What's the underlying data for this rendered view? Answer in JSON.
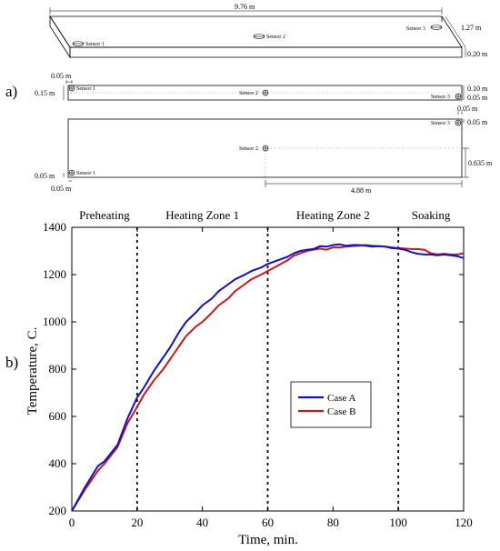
{
  "schematic": {
    "panel_label": "a)",
    "iso": {
      "length": "9.76 m",
      "width": "1.27 m",
      "thickness": "0.20 m",
      "sensors": [
        "Sensor 1",
        "Sensor 2",
        "Sensor 3"
      ]
    },
    "side": {
      "dim_top_left": "0.05 m",
      "dim_left": "0.15 m",
      "dim_right_top": "0.10 m",
      "dim_right_bottom": "0.05 m",
      "dim_below_right": "0.05 m",
      "sensors": [
        "Sensor 1",
        "Sensor 2",
        "Sensor 3"
      ]
    },
    "top": {
      "dim_right_top": "0.05 m",
      "dim_right_mid": "0.635 m",
      "dim_left_bottom": "0.05 m",
      "dim_bottom_left": "0.05 m",
      "dim_bottom_mid": "4.88 m",
      "sensors": [
        "Sensor 1",
        "Sensor 2",
        "Sensor 3"
      ]
    }
  },
  "chart_panel_label": "b)",
  "colors": {
    "case_a": "#1010c8",
    "case_b": "#c81818",
    "case_b_light": "#7a4a10"
  },
  "chart_data": {
    "type": "line",
    "xlabel": "Time, min.",
    "ylabel": "Temperature, C.",
    "xlim": [
      0,
      120
    ],
    "ylim": [
      200,
      1400
    ],
    "xticks": [
      0,
      20,
      40,
      60,
      80,
      100,
      120
    ],
    "yticks": [
      200,
      400,
      600,
      800,
      1000,
      1200,
      1400
    ],
    "grid": false,
    "legend": "center-right",
    "zones": [
      {
        "label": "Preheating",
        "start": 0,
        "end": 20
      },
      {
        "label": "Heating Zone 1",
        "start": 20,
        "end": 60
      },
      {
        "label": "Heating Zone 2",
        "start": 60,
        "end": 100
      },
      {
        "label": "Soaking",
        "start": 100,
        "end": 120
      }
    ],
    "boundaries": [
      20,
      60,
      100
    ],
    "series": [
      {
        "name": "Case A",
        "x": [
          0,
          4,
          8,
          10,
          14,
          17,
          20,
          22,
          25,
          28,
          30,
          33,
          35,
          38,
          40,
          43,
          45,
          48,
          50,
          53,
          55,
          58,
          60,
          62,
          64,
          66,
          68,
          70,
          72,
          74,
          76,
          78,
          80,
          82,
          84,
          86,
          88,
          90,
          92,
          94,
          96,
          98,
          100,
          102,
          104,
          106,
          108,
          110,
          112,
          114,
          116,
          118,
          120
        ],
        "y": [
          200,
          300,
          390,
          410,
          480,
          590,
          680,
          720,
          790,
          850,
          890,
          960,
          1000,
          1040,
          1070,
          1100,
          1130,
          1160,
          1180,
          1200,
          1215,
          1230,
          1245,
          1255,
          1265,
          1275,
          1290,
          1300,
          1305,
          1308,
          1320,
          1318,
          1325,
          1328,
          1322,
          1325,
          1325,
          1322,
          1318,
          1320,
          1318,
          1312,
          1310,
          1305,
          1295,
          1288,
          1285,
          1285,
          1282,
          1285,
          1282,
          1278,
          1270
        ]
      },
      {
        "name": "Case B",
        "x": [
          0,
          4,
          8,
          10,
          14,
          17,
          20,
          22,
          25,
          28,
          30,
          33,
          35,
          38,
          40,
          43,
          45,
          48,
          50,
          53,
          55,
          58,
          60,
          62,
          64,
          66,
          68,
          70,
          72,
          74,
          76,
          78,
          80,
          82,
          84,
          86,
          88,
          90,
          92,
          94,
          96,
          98,
          100,
          102,
          104,
          106,
          108,
          110,
          112,
          114,
          116,
          118,
          120
        ],
        "y": [
          200,
          290,
          370,
          400,
          470,
          570,
          640,
          690,
          750,
          800,
          840,
          900,
          940,
          980,
          1000,
          1040,
          1070,
          1100,
          1130,
          1160,
          1180,
          1200,
          1215,
          1230,
          1245,
          1260,
          1280,
          1290,
          1300,
          1305,
          1310,
          1305,
          1315,
          1315,
          1318,
          1320,
          1322,
          1325,
          1322,
          1320,
          1318,
          1315,
          1312,
          1310,
          1308,
          1308,
          1305,
          1290,
          1285,
          1288,
          1285,
          1285,
          1290
        ]
      }
    ]
  }
}
